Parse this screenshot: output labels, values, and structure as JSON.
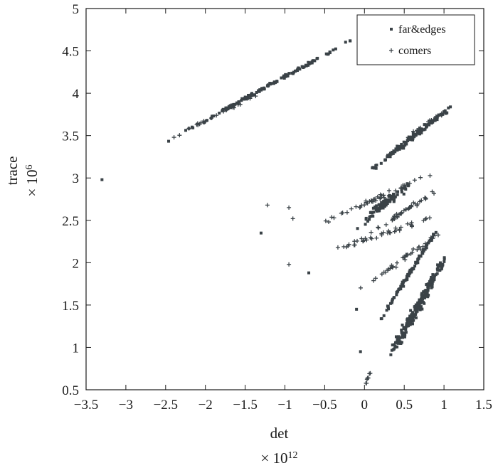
{
  "chart_data": {
    "type": "scatter",
    "xlabel": "det",
    "x_multiplier": "× 10",
    "x_multiplier_exp": "12",
    "ylabel": "trace",
    "y_multiplier": "× 10",
    "y_multiplier_exp": "6",
    "xlim": [
      -3.5,
      1.5
    ],
    "ylim": [
      0.5,
      5
    ],
    "xticks": [
      -3.5,
      -3,
      -2.5,
      -2,
      -1.5,
      -1,
      -0.5,
      0,
      0.5,
      1,
      1.5
    ],
    "xtick_labels": [
      "−3.5",
      "−3",
      "−2.5",
      "−2",
      "−1.5",
      "−1",
      "−0.5",
      "0",
      "0.5",
      "1",
      "1.5"
    ],
    "yticks": [
      0.5,
      1,
      1.5,
      2,
      2.5,
      3,
      3.5,
      4,
      4.5,
      5
    ],
    "ytick_labels": [
      "0.5",
      "1",
      "1.5",
      "2",
      "2.5",
      "3",
      "3.5",
      "4",
      "4.5",
      "5"
    ],
    "grid": false,
    "legend_position": "top-right",
    "colors": {
      "points": "#3a4247",
      "axes": "#1a1a1a"
    },
    "series": [
      {
        "name": "far&edges",
        "marker": "dot",
        "bands": [
          {
            "x_start": -2.9,
            "y_start": 3.22,
            "x_end": -0.05,
            "y_end": 4.68,
            "count": 130,
            "spread": 0.02
          },
          {
            "x_start": -0.1,
            "y_start": 2.95,
            "x_end": 1.1,
            "y_end": 3.85,
            "count": 120,
            "spread": 0.03
          },
          {
            "x_start": -0.15,
            "y_start": 2.4,
            "x_end": 0.6,
            "y_end": 2.95,
            "count": 90,
            "spread": 0.05
          },
          {
            "x_start": 0.05,
            "y_start": 1.1,
            "x_end": 0.95,
            "y_end": 2.45,
            "count": 90,
            "spread": 0.02
          },
          {
            "x_start": 0.15,
            "y_start": 0.6,
            "x_end": 1.05,
            "y_end": 2.12,
            "count": 220,
            "spread": 0.06
          }
        ],
        "outliers": [
          {
            "x": -3.3,
            "y": 2.98
          },
          {
            "x": -1.3,
            "y": 2.35
          },
          {
            "x": -0.7,
            "y": 1.88
          },
          {
            "x": -0.1,
            "y": 1.45
          },
          {
            "x": -0.05,
            "y": 0.95
          }
        ]
      },
      {
        "name": "comers",
        "marker": "plus",
        "bands": [
          {
            "x_start": -0.8,
            "y_start": 2.35,
            "x_end": 0.85,
            "y_end": 3.05,
            "count": 45,
            "spread": 0.03
          },
          {
            "x_start": -0.2,
            "y_start": 2.18,
            "x_end": 1.0,
            "y_end": 2.92,
            "count": 40,
            "spread": 0.03
          },
          {
            "x_start": -0.7,
            "y_start": 2.05,
            "x_end": 0.9,
            "y_end": 2.55,
            "count": 40,
            "spread": 0.03
          },
          {
            "x_start": -0.2,
            "y_start": 1.6,
            "x_end": 1.0,
            "y_end": 2.38,
            "count": 40,
            "spread": 0.03
          },
          {
            "x_start": -2.8,
            "y_start": 3.3,
            "x_end": -1.2,
            "y_end": 4.05,
            "count": 25,
            "spread": 0.02
          },
          {
            "x_start": 0.4,
            "y_start": 3.4,
            "x_end": 1.12,
            "y_end": 3.85,
            "count": 20,
            "spread": 0.02
          },
          {
            "x_start": 0.0,
            "y_start": 0.55,
            "x_end": 0.1,
            "y_end": 0.75,
            "count": 8,
            "spread": 0.02
          }
        ],
        "outliers": [
          {
            "x": -1.22,
            "y": 2.68
          },
          {
            "x": -0.95,
            "y": 2.65
          },
          {
            "x": -0.9,
            "y": 2.52
          },
          {
            "x": -0.95,
            "y": 1.98
          }
        ]
      }
    ]
  }
}
